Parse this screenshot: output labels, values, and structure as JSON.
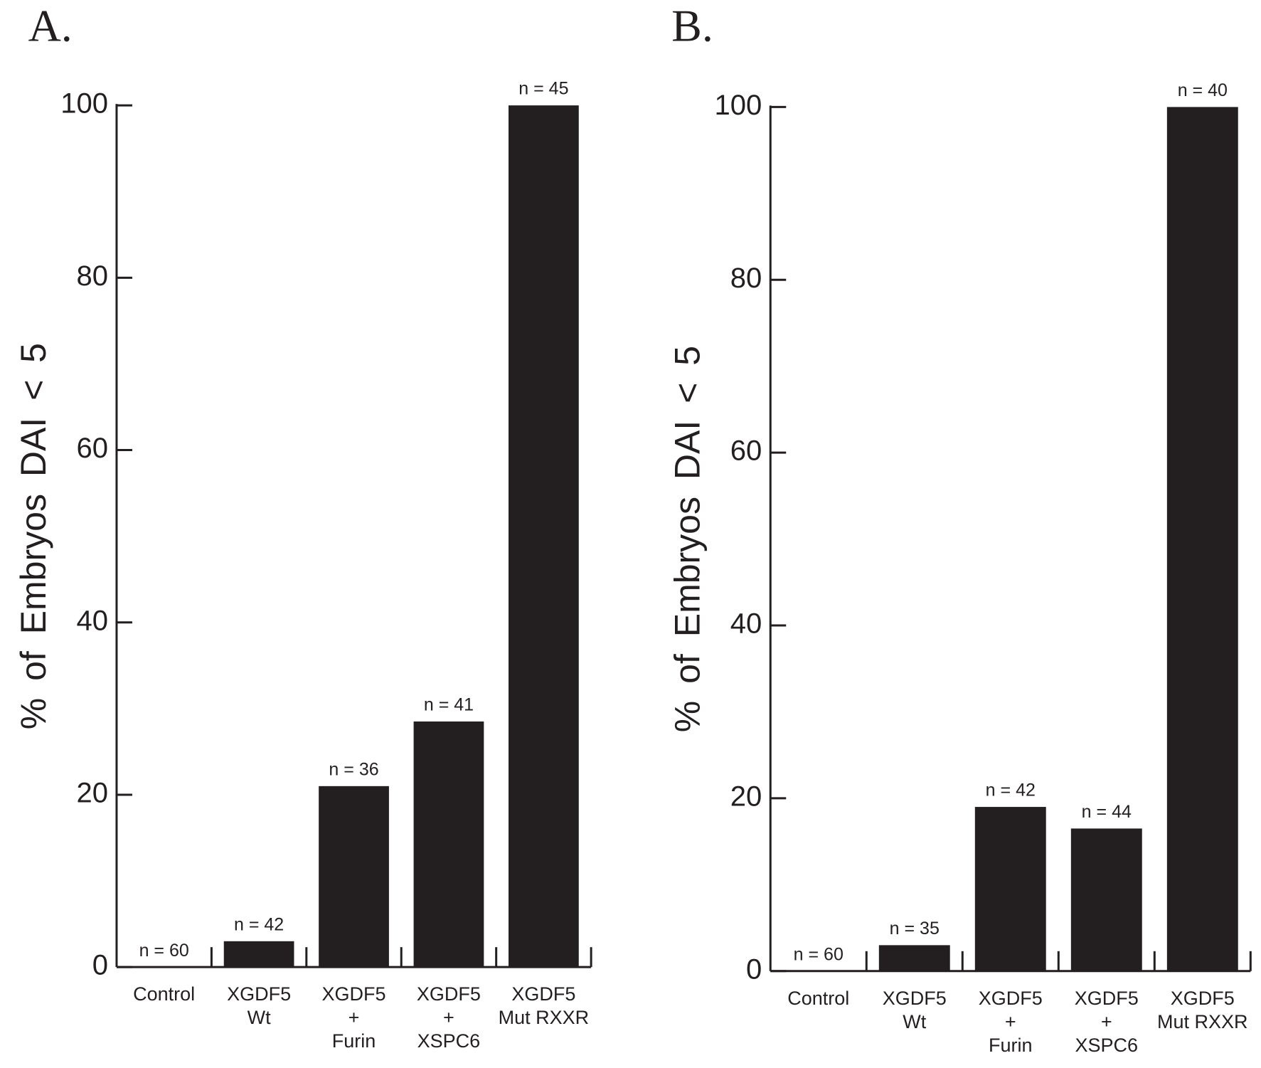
{
  "chart_data": [
    {
      "type": "bar",
      "title": "A.",
      "ylabel": "% of Embryos DAI < 5",
      "categories": [
        "Control",
        "XGDF5\nWt",
        "XGDF5\n+\nFurin",
        "XGDF5\n+\nXSPC6",
        "XGDF5\nMut RXXR"
      ],
      "values": [
        0,
        3,
        21,
        28.5,
        100
      ],
      "annotations": [
        "n = 60",
        "n = 42",
        "n = 36",
        "n = 41",
        "n = 45"
      ],
      "color": "#231f20",
      "ylim": [
        0,
        100
      ],
      "yticks": [
        0,
        20,
        40,
        60,
        80,
        100
      ]
    },
    {
      "type": "bar",
      "title": "B.",
      "ylabel": "% of Embryos DAI < 5",
      "categories": [
        "Control",
        "XGDF5\nWt",
        "XGDF5\n+\nFurin",
        "XGDF5\n+\nXSPC6",
        "XGDF5\nMut RXXR"
      ],
      "values": [
        0,
        3,
        19,
        16.5,
        100
      ],
      "annotations": [
        "n = 60",
        "n = 35",
        "n = 42",
        "n = 44",
        "n = 40"
      ],
      "color": "#231f20",
      "ylim": [
        0,
        100
      ],
      "yticks": [
        0,
        20,
        40,
        60,
        80,
        100
      ]
    }
  ]
}
